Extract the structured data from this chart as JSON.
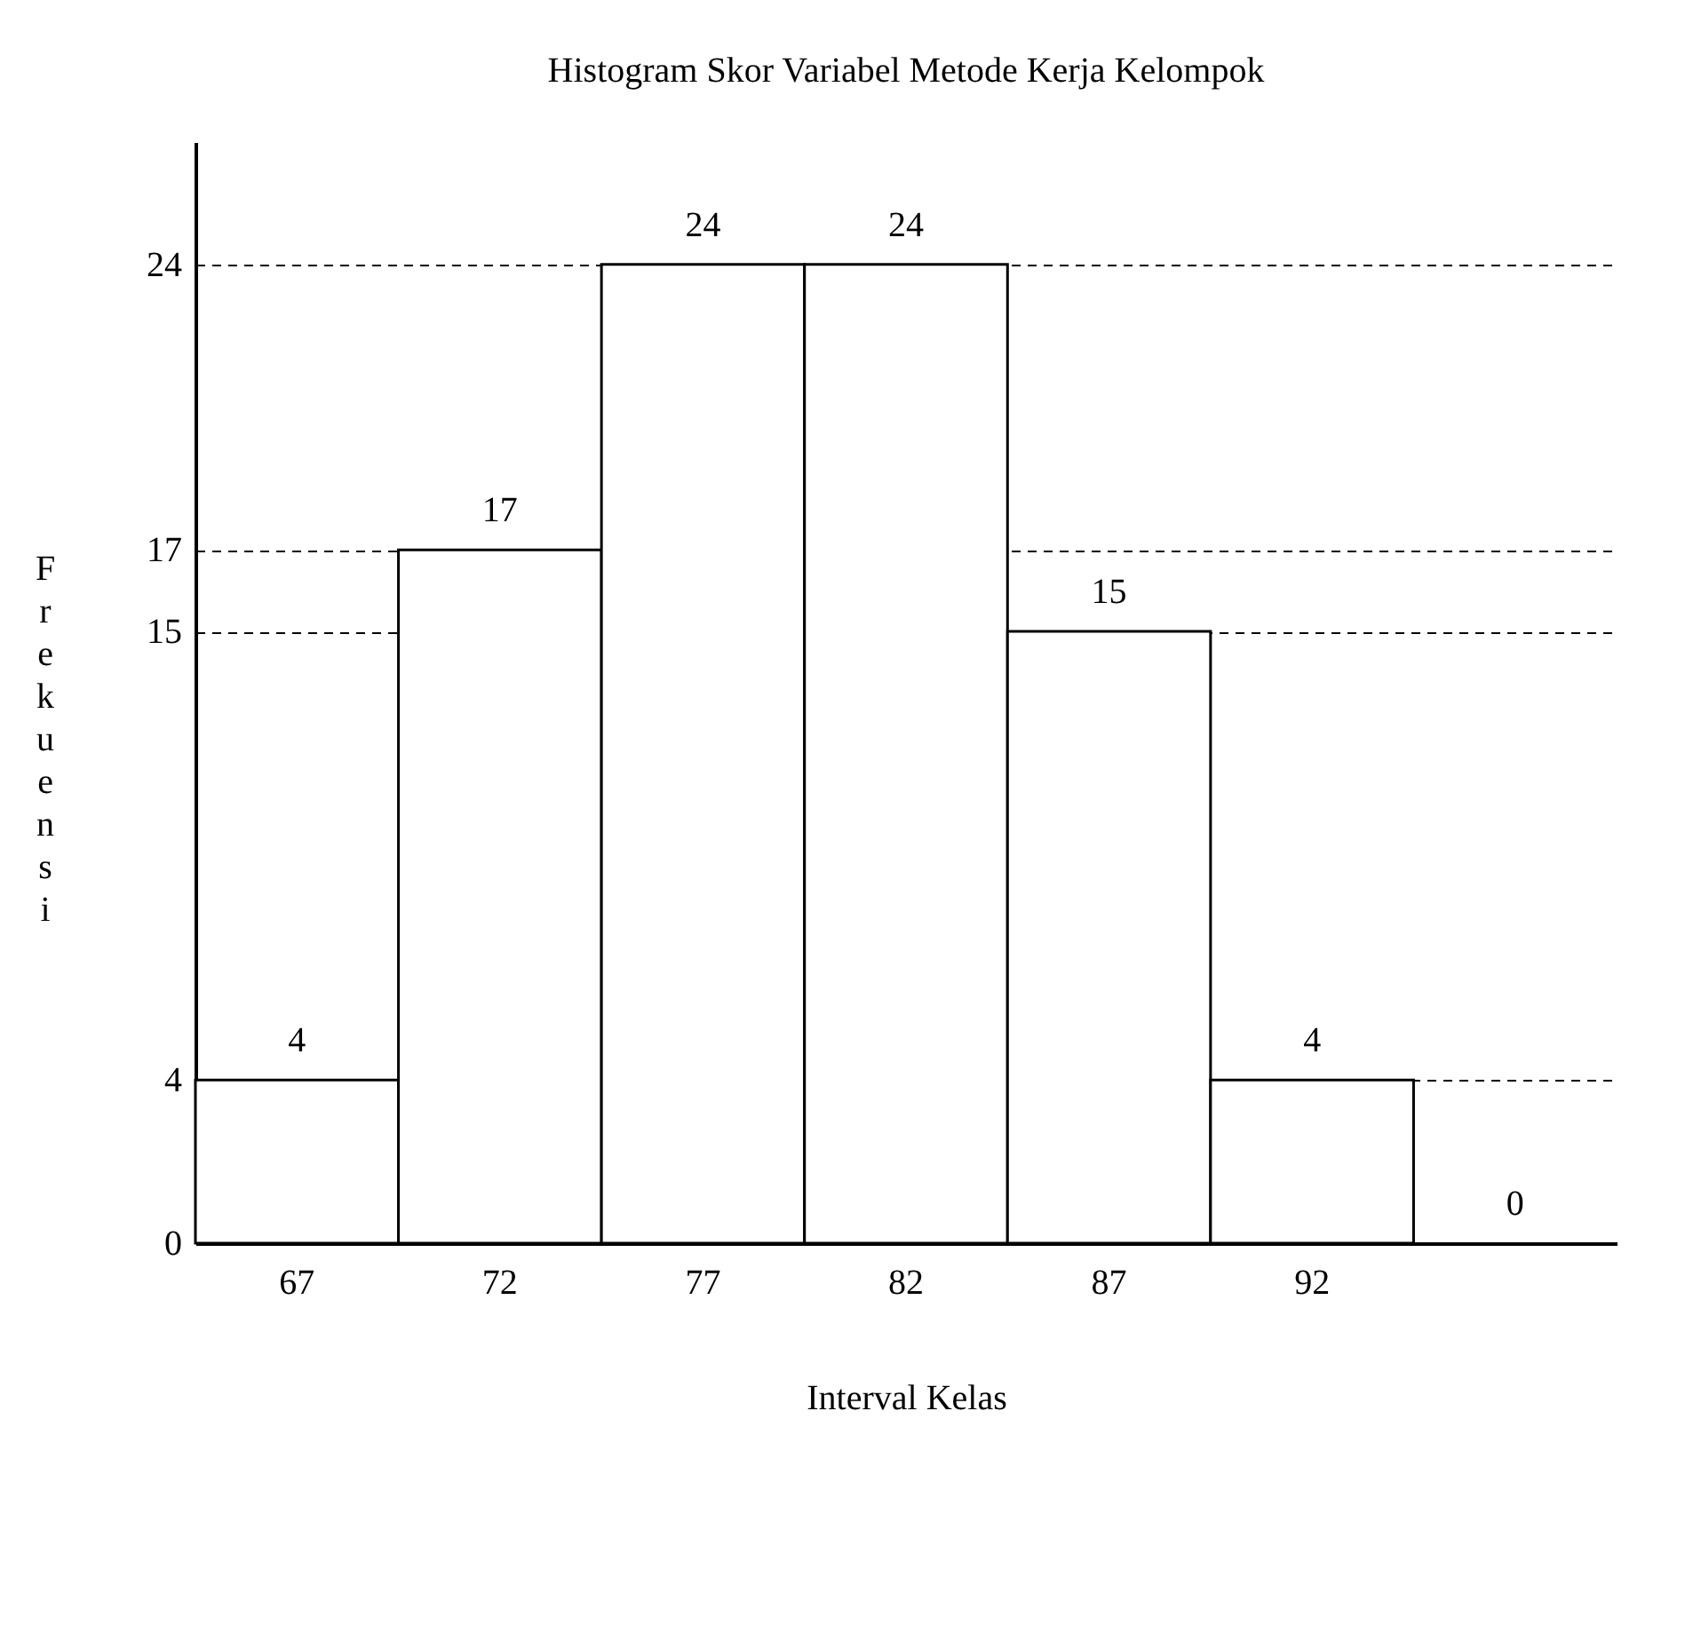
{
  "chart_data": {
    "type": "bar",
    "title": "Histogram Skor Variabel Metode Kerja Kelompok",
    "xlabel": "Interval Kelas",
    "ylabel": "Frekuensi",
    "categories": [
      "67",
      "72",
      "77",
      "82",
      "87",
      "92",
      null
    ],
    "values": [
      4,
      17,
      24,
      24,
      15,
      4,
      0
    ],
    "color": "#ffffff",
    "ylim": [
      0,
      27
    ],
    "yticks": [
      0,
      4,
      15,
      17,
      24
    ],
    "grid": "y",
    "data_labels": true
  }
}
